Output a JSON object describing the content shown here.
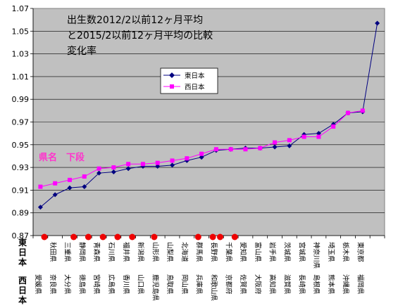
{
  "chart_data": {
    "type": "line",
    "title_lines": [
      "出生数2012/2以前12ヶ月平均",
      "と2015/2以前12ヶ月平均の比較",
      "変化率"
    ],
    "ylim": [
      0.87,
      1.07
    ],
    "yticks": [
      "0.87",
      "0.89",
      "0.91",
      "0.93",
      "0.95",
      "0.97",
      "0.99",
      "1.01",
      "1.03",
      "1.05",
      "1.07"
    ],
    "grid": "horizontal",
    "legend_position": "center-left inside plot",
    "series": [
      {
        "name": "東日本",
        "color": "#000080",
        "marker": "diamond",
        "categories": [
          "愛媛県",
          "秋田県",
          "三重県",
          "静岡県",
          "青森県",
          "宮崎県",
          "石川県",
          "福井県",
          "新潟県",
          "山形県",
          "山梨県",
          "北海道",
          "群馬県",
          "長野県",
          "千葉県",
          "愛知県",
          "富山県",
          "岩手県",
          "茨城県",
          "宮城県",
          "神奈川県",
          "埼玉県",
          "栃木県",
          "東京都"
        ],
        "values": [
          0.895,
          0.906,
          0.912,
          0.913,
          0.925,
          0.926,
          0.929,
          0.931,
          0.931,
          0.932,
          0.936,
          0.939,
          0.945,
          0.946,
          0.947,
          0.947,
          0.948,
          0.949,
          0.959,
          0.96,
          0.968,
          0.978,
          0.979,
          1.057
        ]
      },
      {
        "name": "西日本",
        "color": "#ff00ff",
        "marker": "square",
        "categories": [
          "愛媛県",
          "奈良県",
          "大分県",
          "徳島県",
          "宮崎県",
          "広島県",
          "香川県",
          "山口県",
          "鹿児島県",
          "鳥取県",
          "岡山県",
          "兵庫県",
          "和歌山県",
          "京都府",
          "佐賀県",
          "大阪府",
          "高知県",
          "滋賀県",
          "長崎県",
          "島根県",
          "熊本県",
          "沖縄県",
          "福岡県"
        ],
        "values": [
          0.913,
          0.916,
          0.919,
          0.922,
          0.929,
          0.93,
          0.933,
          0.933,
          0.934,
          0.936,
          0.938,
          0.942,
          0.946,
          0.946,
          0.946,
          0.947,
          0.952,
          0.954,
          0.957,
          0.957,
          0.966,
          0.978,
          0.98
        ]
      }
    ],
    "east_labels": [
      "秋田県",
      "三重県",
      "静岡県",
      "青森県",
      "石川県",
      "福井県",
      "新潟県",
      "山形県",
      "山梨県",
      "北海道",
      "群馬県",
      "長野県",
      "千葉県",
      "愛知県",
      "富山県",
      "岩手県",
      "茨城県",
      "宮城県",
      "神奈川県",
      "埼玉県",
      "栃木県",
      "東京都"
    ],
    "west_labels": [
      "愛媛県",
      "奈良県",
      "大分県",
      "徳島県",
      "宮崎県",
      "広島県",
      "香川県",
      "山口県",
      "鹿児島県",
      "鳥取県",
      "岡山県",
      "兵庫県",
      "和歌山県",
      "京都府",
      "佐賀県",
      "大阪府",
      "高知県",
      "滋賀県",
      "長崎県",
      "島根県",
      "熊本県",
      "沖縄県",
      "福岡県"
    ],
    "east_axis_label": [
      "東",
      "日",
      "本"
    ],
    "west_axis_label": [
      "西",
      "日",
      "本"
    ],
    "annotation": "県名　下段",
    "marker_dot_color": "#ee0000",
    "dot_category_indices": [
      0,
      4,
      6,
      8,
      10,
      12,
      15,
      21,
      23,
      24,
      26
    ]
  }
}
